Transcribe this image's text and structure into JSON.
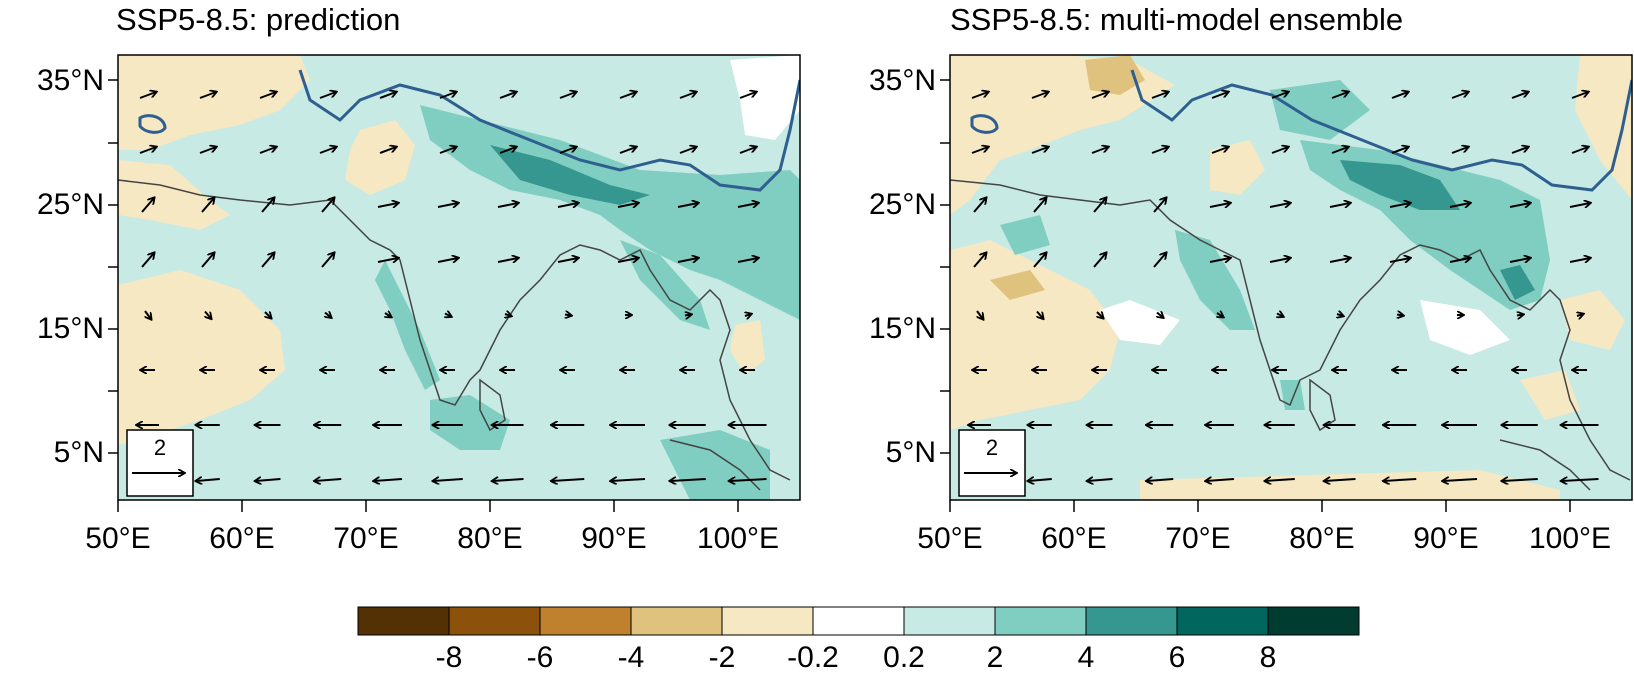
{
  "figure": {
    "panels": [
      {
        "id": "prediction",
        "title": "SSP5-8.5: prediction",
        "reference_vector_label": "2"
      },
      {
        "id": "ensemble",
        "title": "SSP5-8.5: multi-model ensemble",
        "reference_vector_label": "2"
      }
    ],
    "lon_ticks": [
      "50°E",
      "60°E",
      "70°E",
      "80°E",
      "90°E",
      "100°E"
    ],
    "lat_ticks": [
      "35°N",
      "25°N",
      "15°N",
      "5°N"
    ],
    "colorbar": {
      "labels": [
        "-8",
        "-6",
        "-4",
        "-2",
        "-0.2",
        "0.2",
        "2",
        "4",
        "6",
        "8"
      ],
      "colors": [
        "#543005",
        "#8c510a",
        "#bf812d",
        "#dfc27d",
        "#f6e8c3",
        "#ffffff",
        "#c7eae5",
        "#80cdc1",
        "#35978f",
        "#01665e",
        "#003c30"
      ]
    },
    "colors": {
      "ocean_fill": "#c7eae5",
      "land_outline": "#444444",
      "plateau_contour": "#2f5f8f",
      "vector": "#000000"
    }
  }
}
